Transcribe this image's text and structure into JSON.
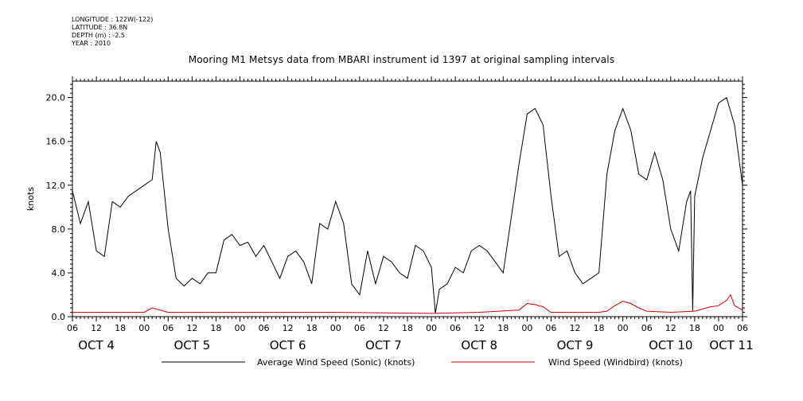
{
  "meta": {
    "longitude": "LONGITUDE : 122W(-122)",
    "latitude": "LATITUDE : 36.8N",
    "depth": "DEPTH (m) : -2.5",
    "year": "YEAR : 2010"
  },
  "chart_data": {
    "type": "line",
    "title": "Mooring M1 Metsys data from MBARI instrument id 1397 at original sampling intervals",
    "ylabel": "knots",
    "xlabel": "",
    "ylim": [
      0,
      21.5
    ],
    "xlim": [
      "2010-10-04T06:00",
      "2010-10-11T06:00"
    ],
    "yticks": [
      "0.0",
      "4.0",
      "8.0",
      "12.0",
      "16.0",
      "20.0"
    ],
    "xtick_hour_labels": [
      "06",
      "12",
      "18",
      "00",
      "06",
      "12",
      "18",
      "00",
      "06",
      "12",
      "18",
      "00",
      "06",
      "12",
      "18",
      "00",
      "06",
      "12",
      "18",
      "00",
      "06",
      "12",
      "18",
      "00",
      "06",
      "12",
      "18",
      "00",
      "06"
    ],
    "day_labels": [
      "OCT  4",
      "OCT  5",
      "OCT  6",
      "OCT  7",
      "OCT  8",
      "OCT  9",
      "OCT 10",
      "OCT 11"
    ],
    "grid": false,
    "legend_position": "bottom",
    "series": [
      {
        "name": "Average Wind Speed (Sonic) (knots)",
        "color": "#000000",
        "x": [
          "2010-10-04T06:00",
          "2010-10-04T08:00",
          "2010-10-04T10:00",
          "2010-10-04T12:00",
          "2010-10-04T14:00",
          "2010-10-04T16:00",
          "2010-10-04T18:00",
          "2010-10-04T20:00",
          "2010-10-04T22:00",
          "2010-10-05T00:00",
          "2010-10-05T02:00",
          "2010-10-05T03:00",
          "2010-10-05T04:00",
          "2010-10-05T06:00",
          "2010-10-05T08:00",
          "2010-10-05T10:00",
          "2010-10-05T12:00",
          "2010-10-05T14:00",
          "2010-10-05T16:00",
          "2010-10-05T18:00",
          "2010-10-05T20:00",
          "2010-10-05T22:00",
          "2010-10-06T00:00",
          "2010-10-06T02:00",
          "2010-10-06T04:00",
          "2010-10-06T06:00",
          "2010-10-06T08:00",
          "2010-10-06T10:00",
          "2010-10-06T12:00",
          "2010-10-06T14:00",
          "2010-10-06T16:00",
          "2010-10-06T18:00",
          "2010-10-06T20:00",
          "2010-10-06T22:00",
          "2010-10-07T00:00",
          "2010-10-07T02:00",
          "2010-10-07T04:00",
          "2010-10-07T06:00",
          "2010-10-07T08:00",
          "2010-10-07T10:00",
          "2010-10-07T12:00",
          "2010-10-07T14:00",
          "2010-10-07T16:00",
          "2010-10-07T18:00",
          "2010-10-07T20:00",
          "2010-10-07T22:00",
          "2010-10-08T00:00",
          "2010-10-08T01:00",
          "2010-10-08T02:00",
          "2010-10-08T04:00",
          "2010-10-08T06:00",
          "2010-10-08T08:00",
          "2010-10-08T10:00",
          "2010-10-08T12:00",
          "2010-10-08T14:00",
          "2010-10-08T16:00",
          "2010-10-08T18:00",
          "2010-10-08T20:00",
          "2010-10-08T22:00",
          "2010-10-09T00:00",
          "2010-10-09T02:00",
          "2010-10-09T04:00",
          "2010-10-09T06:00",
          "2010-10-09T08:00",
          "2010-10-09T10:00",
          "2010-10-09T12:00",
          "2010-10-09T14:00",
          "2010-10-09T16:00",
          "2010-10-09T18:00",
          "2010-10-09T20:00",
          "2010-10-09T22:00",
          "2010-10-10T00:00",
          "2010-10-10T02:00",
          "2010-10-10T04:00",
          "2010-10-10T06:00",
          "2010-10-10T08:00",
          "2010-10-10T10:00",
          "2010-10-10T12:00",
          "2010-10-10T14:00",
          "2010-10-10T16:00",
          "2010-10-10T17:00",
          "2010-10-10T17:30",
          "2010-10-10T18:00",
          "2010-10-10T20:00",
          "2010-10-10T22:00",
          "2010-10-11T00:00",
          "2010-10-11T02:00",
          "2010-10-11T04:00",
          "2010-10-11T06:00"
        ],
        "values": [
          11.5,
          8.5,
          10.5,
          6.0,
          5.5,
          10.5,
          10.0,
          11.0,
          11.5,
          12.0,
          12.5,
          16.0,
          15.0,
          8.0,
          3.5,
          2.8,
          3.5,
          3.0,
          4.0,
          4.0,
          7.0,
          7.5,
          6.5,
          6.8,
          5.5,
          6.5,
          5.0,
          3.5,
          5.5,
          6.0,
          5.0,
          3.0,
          8.5,
          8.0,
          10.5,
          8.5,
          3.0,
          2.0,
          6.0,
          3.0,
          5.5,
          5.0,
          4.0,
          3.5,
          6.5,
          6.0,
          4.5,
          0.3,
          2.5,
          3.0,
          4.5,
          4.0,
          6.0,
          6.5,
          6.0,
          5.0,
          4.0,
          9.0,
          14.0,
          18.5,
          19.0,
          17.5,
          11.0,
          5.5,
          6.0,
          4.0,
          3.0,
          3.5,
          4.0,
          13.0,
          17.0,
          19.0,
          17.0,
          13.0,
          12.5,
          15.0,
          12.5,
          8.0,
          6.0,
          10.5,
          11.5,
          0.5,
          11.0,
          14.5,
          17.0,
          19.5,
          20.0,
          17.5,
          12.0
        ]
      },
      {
        "name": "Wind Speed (Windbird) (knots)",
        "color": "#cc0000",
        "x": [
          "2010-10-04T06:00",
          "2010-10-05T00:00",
          "2010-10-05T02:00",
          "2010-10-05T06:00",
          "2010-10-06T00:00",
          "2010-10-07T00:00",
          "2010-10-08T00:00",
          "2010-10-08T12:00",
          "2010-10-08T22:00",
          "2010-10-09T00:00",
          "2010-10-09T02:00",
          "2010-10-09T04:00",
          "2010-10-09T06:00",
          "2010-10-09T18:00",
          "2010-10-09T20:00",
          "2010-10-09T22:00",
          "2010-10-10T00:00",
          "2010-10-10T02:00",
          "2010-10-10T04:00",
          "2010-10-10T06:00",
          "2010-10-10T12:00",
          "2010-10-10T18:00",
          "2010-10-10T20:00",
          "2010-10-10T22:00",
          "2010-10-11T00:00",
          "2010-10-11T02:00",
          "2010-10-11T03:00",
          "2010-10-11T04:00",
          "2010-10-11T06:00"
        ],
        "values": [
          0.4,
          0.4,
          0.8,
          0.4,
          0.4,
          0.4,
          0.3,
          0.4,
          0.6,
          1.2,
          1.1,
          0.9,
          0.4,
          0.4,
          0.5,
          1.0,
          1.4,
          1.2,
          0.8,
          0.5,
          0.4,
          0.5,
          0.7,
          0.9,
          1.0,
          1.5,
          2.0,
          1.0,
          0.6
        ]
      }
    ]
  }
}
